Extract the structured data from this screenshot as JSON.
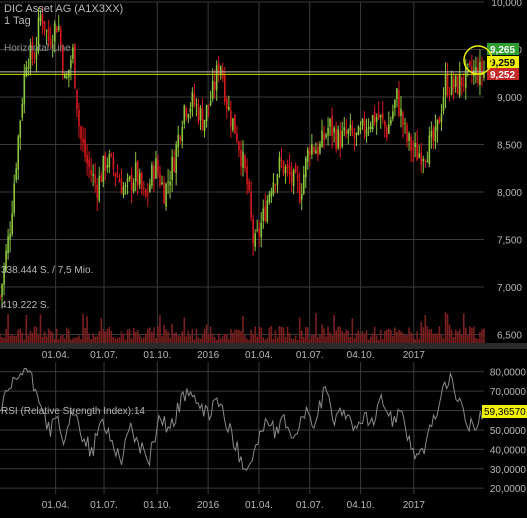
{
  "header": {
    "title": "DIC Asset AG (A1X3XX)",
    "interval": "1 Tag"
  },
  "colors": {
    "background": "#000000",
    "grid": "#3a3a3a",
    "candle_up": "#8cc63f",
    "candle_down": "#d7191c",
    "horizontal_line": "#bdbdbd",
    "price_line": "#c8e000",
    "rsi_line": "#8a8a8a",
    "volume_bar": "#7a2020",
    "label_green": "#2e9e2e",
    "label_yellow": "#f1f100",
    "label_red": "#c62828",
    "axis_text": "#b8b8b8"
  },
  "chart_data": [
    {
      "type": "candlestick",
      "title": "DIC Asset AG (A1X3XX)",
      "subtitle": "1 Tag",
      "y_ticks": [
        "10,000",
        "9,500",
        "9,000",
        "8,500",
        "8,000",
        "7,500",
        "7,000",
        "6,500"
      ],
      "ylim": [
        6.4,
        10.0
      ],
      "x_ticks": [
        "01.04.",
        "01.07.",
        "01.10.",
        "2016",
        "01.04.",
        "01.07.",
        "04.10.",
        "2017"
      ],
      "grid": true,
      "close_points": [
        {
          "t": 0.0,
          "v": 6.9
        },
        {
          "t": 0.02,
          "v": 7.6
        },
        {
          "t": 0.04,
          "v": 8.7
        },
        {
          "t": 0.055,
          "v": 9.45
        },
        {
          "t": 0.07,
          "v": 9.4
        },
        {
          "t": 0.085,
          "v": 9.9
        },
        {
          "t": 0.1,
          "v": 9.6
        },
        {
          "t": 0.12,
          "v": 9.8
        },
        {
          "t": 0.135,
          "v": 9.1
        },
        {
          "t": 0.15,
          "v": 9.5
        },
        {
          "t": 0.165,
          "v": 8.6
        },
        {
          "t": 0.18,
          "v": 8.3
        },
        {
          "t": 0.2,
          "v": 8.05
        },
        {
          "t": 0.22,
          "v": 8.35
        },
        {
          "t": 0.24,
          "v": 8.2
        },
        {
          "t": 0.26,
          "v": 8.0
        },
        {
          "t": 0.28,
          "v": 8.2
        },
        {
          "t": 0.3,
          "v": 7.9
        },
        {
          "t": 0.32,
          "v": 8.3
        },
        {
          "t": 0.34,
          "v": 8.0
        },
        {
          "t": 0.36,
          "v": 8.35
        },
        {
          "t": 0.38,
          "v": 8.9
        },
        {
          "t": 0.4,
          "v": 8.95
        },
        {
          "t": 0.42,
          "v": 8.75
        },
        {
          "t": 0.44,
          "v": 9.05
        },
        {
          "t": 0.455,
          "v": 9.4
        },
        {
          "t": 0.47,
          "v": 8.9
        },
        {
          "t": 0.49,
          "v": 8.6
        },
        {
          "t": 0.51,
          "v": 8.1
        },
        {
          "t": 0.525,
          "v": 7.4
        },
        {
          "t": 0.545,
          "v": 7.75
        },
        {
          "t": 0.56,
          "v": 8.1
        },
        {
          "t": 0.58,
          "v": 8.3
        },
        {
          "t": 0.6,
          "v": 8.15
        },
        {
          "t": 0.62,
          "v": 8.0
        },
        {
          "t": 0.64,
          "v": 8.5
        },
        {
          "t": 0.66,
          "v": 8.45
        },
        {
          "t": 0.68,
          "v": 8.7
        },
        {
          "t": 0.7,
          "v": 8.55
        },
        {
          "t": 0.72,
          "v": 8.6
        },
        {
          "t": 0.74,
          "v": 8.55
        },
        {
          "t": 0.76,
          "v": 8.75
        },
        {
          "t": 0.78,
          "v": 8.8
        },
        {
          "t": 0.8,
          "v": 8.65
        },
        {
          "t": 0.82,
          "v": 9.0
        },
        {
          "t": 0.84,
          "v": 8.55
        },
        {
          "t": 0.86,
          "v": 8.4
        },
        {
          "t": 0.88,
          "v": 8.45
        },
        {
          "t": 0.9,
          "v": 8.55
        },
        {
          "t": 0.92,
          "v": 9.15
        },
        {
          "t": 0.94,
          "v": 9.1
        },
        {
          "t": 0.96,
          "v": 9.2
        },
        {
          "t": 0.98,
          "v": 9.25
        },
        {
          "t": 1.0,
          "v": 9.259
        }
      ],
      "horizontal_line": {
        "label": "Horizontal Line",
        "value": 9.265
      },
      "price_labels": [
        {
          "text": "9,265",
          "role": "horizontal-line-value"
        },
        {
          "text": "9,259",
          "role": "last-price"
        },
        {
          "text": "9,252",
          "role": "low-price"
        }
      ],
      "volume": {
        "labels": [
          "338.444 S. / 7,5 Mio.",
          "419.222 S."
        ]
      }
    },
    {
      "type": "line",
      "title": "RSI (Relative Strength Index):14",
      "y_ticks": [
        "80,0000",
        "70,0000",
        "60,0000",
        "50,0000",
        "40,0000",
        "30,0000",
        "20,0000"
      ],
      "ylim": [
        17,
        85
      ],
      "x_ticks": [
        "01.04.",
        "01.07.",
        "01.10.",
        "2016",
        "01.04.",
        "01.07.",
        "04.10.",
        "2017"
      ],
      "grid": true,
      "last_value": "59,36570",
      "points": [
        {
          "t": 0.0,
          "v": 60
        },
        {
          "t": 0.02,
          "v": 70
        },
        {
          "t": 0.04,
          "v": 78
        },
        {
          "t": 0.055,
          "v": 82
        },
        {
          "t": 0.07,
          "v": 72
        },
        {
          "t": 0.085,
          "v": 65
        },
        {
          "t": 0.1,
          "v": 50
        },
        {
          "t": 0.12,
          "v": 55
        },
        {
          "t": 0.135,
          "v": 42
        },
        {
          "t": 0.15,
          "v": 60
        },
        {
          "t": 0.17,
          "v": 48
        },
        {
          "t": 0.19,
          "v": 38
        },
        {
          "t": 0.21,
          "v": 55
        },
        {
          "t": 0.23,
          "v": 45
        },
        {
          "t": 0.25,
          "v": 35
        },
        {
          "t": 0.27,
          "v": 52
        },
        {
          "t": 0.29,
          "v": 40
        },
        {
          "t": 0.31,
          "v": 36
        },
        {
          "t": 0.33,
          "v": 58
        },
        {
          "t": 0.35,
          "v": 50
        },
        {
          "t": 0.37,
          "v": 62
        },
        {
          "t": 0.39,
          "v": 72
        },
        {
          "t": 0.41,
          "v": 60
        },
        {
          "t": 0.43,
          "v": 58
        },
        {
          "t": 0.45,
          "v": 66
        },
        {
          "t": 0.47,
          "v": 52
        },
        {
          "t": 0.49,
          "v": 40
        },
        {
          "t": 0.51,
          "v": 30
        },
        {
          "t": 0.53,
          "v": 42
        },
        {
          "t": 0.55,
          "v": 55
        },
        {
          "t": 0.57,
          "v": 48
        },
        {
          "t": 0.59,
          "v": 55
        },
        {
          "t": 0.61,
          "v": 45
        },
        {
          "t": 0.63,
          "v": 60
        },
        {
          "t": 0.65,
          "v": 52
        },
        {
          "t": 0.67,
          "v": 70
        },
        {
          "t": 0.69,
          "v": 56
        },
        {
          "t": 0.71,
          "v": 62
        },
        {
          "t": 0.73,
          "v": 48
        },
        {
          "t": 0.75,
          "v": 58
        },
        {
          "t": 0.77,
          "v": 52
        },
        {
          "t": 0.79,
          "v": 66
        },
        {
          "t": 0.81,
          "v": 55
        },
        {
          "t": 0.83,
          "v": 62
        },
        {
          "t": 0.85,
          "v": 40
        },
        {
          "t": 0.87,
          "v": 36
        },
        {
          "t": 0.89,
          "v": 50
        },
        {
          "t": 0.91,
          "v": 66
        },
        {
          "t": 0.93,
          "v": 78
        },
        {
          "t": 0.95,
          "v": 62
        },
        {
          "t": 0.97,
          "v": 52
        },
        {
          "t": 0.985,
          "v": 55
        },
        {
          "t": 1.0,
          "v": 59.3657
        }
      ]
    }
  ]
}
